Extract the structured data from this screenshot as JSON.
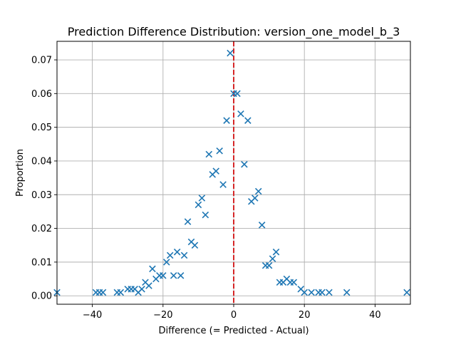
{
  "chart_data": {
    "type": "scatter",
    "title": "Prediction Difference Distribution: version_one_model_b_3",
    "xlabel": "Difference (= Predicted - Actual)",
    "ylabel": "Proportion",
    "xlim": [
      -50,
      50
    ],
    "ylim": [
      -0.0025,
      0.0755
    ],
    "xticks": [
      -40,
      -20,
      0,
      20,
      40
    ],
    "xtick_labels": [
      "−40",
      "−20",
      "0",
      "20",
      "40"
    ],
    "yticks": [
      0.0,
      0.01,
      0.02,
      0.03,
      0.04,
      0.05,
      0.06,
      0.07
    ],
    "ytick_labels": [
      "0.00",
      "0.01",
      "0.02",
      "0.03",
      "0.04",
      "0.05",
      "0.06",
      "0.07"
    ],
    "grid": true,
    "marker": "x",
    "series_color": "#1f77b4",
    "reference_line": {
      "x": 0,
      "style": "dashed",
      "color": "#d62728"
    },
    "points": [
      {
        "x": -50,
        "y": 0.001
      },
      {
        "x": -39,
        "y": 0.001
      },
      {
        "x": -38,
        "y": 0.001
      },
      {
        "x": -37,
        "y": 0.001
      },
      {
        "x": -33,
        "y": 0.001
      },
      {
        "x": -32,
        "y": 0.001
      },
      {
        "x": -30,
        "y": 0.002
      },
      {
        "x": -29,
        "y": 0.002
      },
      {
        "x": -28,
        "y": 0.002
      },
      {
        "x": -27,
        "y": 0.001
      },
      {
        "x": -26,
        "y": 0.002
      },
      {
        "x": -25,
        "y": 0.004
      },
      {
        "x": -24,
        "y": 0.003
      },
      {
        "x": -23,
        "y": 0.008
      },
      {
        "x": -22,
        "y": 0.005
      },
      {
        "x": -21,
        "y": 0.006
      },
      {
        "x": -20,
        "y": 0.006
      },
      {
        "x": -19,
        "y": 0.01
      },
      {
        "x": -18,
        "y": 0.012
      },
      {
        "x": -17,
        "y": 0.006
      },
      {
        "x": -16,
        "y": 0.013
      },
      {
        "x": -15,
        "y": 0.006
      },
      {
        "x": -14,
        "y": 0.012
      },
      {
        "x": -13,
        "y": 0.022
      },
      {
        "x": -12,
        "y": 0.016
      },
      {
        "x": -11,
        "y": 0.015
      },
      {
        "x": -10,
        "y": 0.027
      },
      {
        "x": -9,
        "y": 0.029
      },
      {
        "x": -8,
        "y": 0.024
      },
      {
        "x": -7,
        "y": 0.042
      },
      {
        "x": -6,
        "y": 0.036
      },
      {
        "x": -5,
        "y": 0.037
      },
      {
        "x": -4,
        "y": 0.043
      },
      {
        "x": -3,
        "y": 0.033
      },
      {
        "x": -2,
        "y": 0.052
      },
      {
        "x": -1,
        "y": 0.072
      },
      {
        "x": 0,
        "y": 0.06
      },
      {
        "x": 1,
        "y": 0.06
      },
      {
        "x": 2,
        "y": 0.054
      },
      {
        "x": 3,
        "y": 0.039
      },
      {
        "x": 4,
        "y": 0.052
      },
      {
        "x": 5,
        "y": 0.028
      },
      {
        "x": 6,
        "y": 0.029
      },
      {
        "x": 7,
        "y": 0.031
      },
      {
        "x": 8,
        "y": 0.021
      },
      {
        "x": 9,
        "y": 0.009
      },
      {
        "x": 10,
        "y": 0.009
      },
      {
        "x": 11,
        "y": 0.011
      },
      {
        "x": 12,
        "y": 0.013
      },
      {
        "x": 13,
        "y": 0.004
      },
      {
        "x": 14,
        "y": 0.004
      },
      {
        "x": 15,
        "y": 0.005
      },
      {
        "x": 16,
        "y": 0.004
      },
      {
        "x": 17,
        "y": 0.004
      },
      {
        "x": 19,
        "y": 0.002
      },
      {
        "x": 20,
        "y": 0.001
      },
      {
        "x": 22,
        "y": 0.001
      },
      {
        "x": 24,
        "y": 0.001
      },
      {
        "x": 25,
        "y": 0.001
      },
      {
        "x": 27,
        "y": 0.001
      },
      {
        "x": 32,
        "y": 0.001
      },
      {
        "x": 49,
        "y": 0.001
      }
    ]
  }
}
